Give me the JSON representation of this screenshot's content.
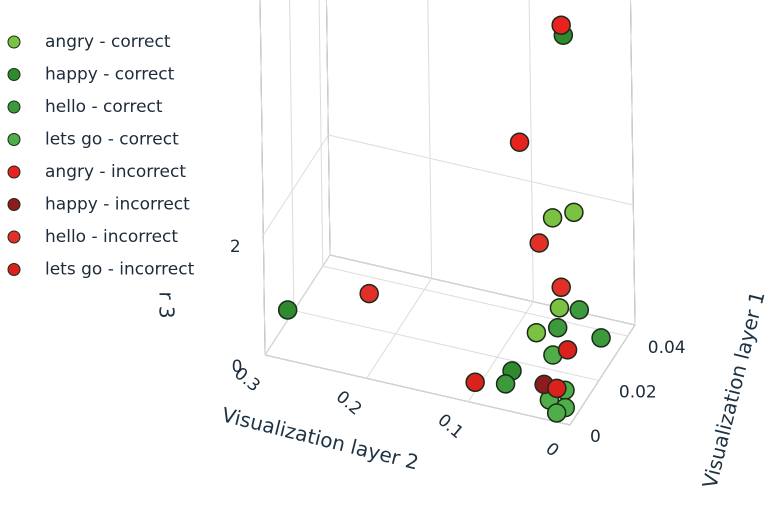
{
  "chart_data": {
    "type": "scatter3d",
    "xlabel": "Visualization layer 2",
    "ylabel": "Visualization layer 1",
    "zlabel": "r 3",
    "xlim": [
      0,
      0.3
    ],
    "ylim": [
      0,
      0.045
    ],
    "zlim": [
      0,
      6
    ],
    "xticks": [
      0,
      0.1,
      0.2,
      0.3
    ],
    "yticks": [
      0,
      0.02,
      0.04
    ],
    "zticks": [
      0,
      2
    ],
    "grid": true,
    "legend": "upper left",
    "series": [
      {
        "name": "angry - correct",
        "color": "#7cc242",
        "x": [
          0.034,
          0.026,
          0.035,
          0.045
        ],
        "y": [
          0.0135,
          0.0225,
          0.018,
          0.009
        ],
        "z": [
          2.82,
          2.61,
          1.15,
          1.03
        ]
      },
      {
        "name": "happy - correct",
        "color": "#2f8a2f",
        "x": [
          0.034,
          0.277,
          0.063
        ],
        "y": [
          0.0225,
          0,
          0.0045
        ],
        "z": [
          5.53,
          0.84,
          0.49
        ]
      },
      {
        "name": "hello - correct",
        "color": "#3c9a3c",
        "x": [
          0.037,
          0.022,
          0.014,
          0.063
        ],
        "y": [
          0.018,
          0.0225,
          0.0315,
          0
        ],
        "z": [
          0.81,
          1.0,
          0.23,
          0.44
        ]
      },
      {
        "name": "lets go - correct",
        "color": "#4fae48",
        "x": [
          0.029,
          0.011,
          0.02,
          0.011,
          0.013
        ],
        "y": [
          0.009,
          0.0045,
          0,
          0.0045,
          0
        ],
        "z": [
          0.72,
          0.37,
          0.34,
          0.08,
          0.15
        ]
      },
      {
        "name": "angry - incorrect",
        "color": "#e8231f",
        "x": [
          0.036,
          0.059
        ],
        "y": [
          0.0225,
          0.009
        ],
        "z": [
          5.69,
          4.15
        ]
      },
      {
        "name": "happy - incorrect",
        "color": "#8e1c1c",
        "x": [
          0.025
        ],
        "y": [
          0
        ],
        "z": [
          0.58
        ]
      },
      {
        "name": "hello - incorrect",
        "color": "#e23028",
        "x": [
          0.041,
          0.216,
          0.033
        ],
        "y": [
          0.009,
          0.0135,
          0.018
        ],
        "z": [
          2.54,
          0.85,
          1.5
        ]
      },
      {
        "name": "lets go - incorrect",
        "color": "#d9221c",
        "x": [
          0.021,
          0.093,
          0.019
        ],
        "y": [
          0.0135,
          0,
          0.0045
        ],
        "z": [
          0.67,
          0.35,
          0.37
        ]
      }
    ]
  }
}
